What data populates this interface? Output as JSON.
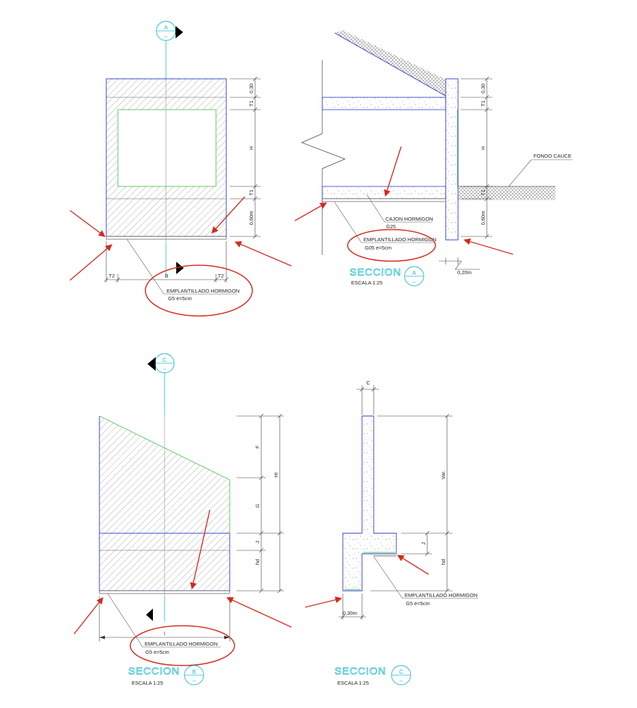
{
  "colors": {
    "structure_outline": "#2233cc",
    "inner_face": "#4cc44c",
    "centerline": "#19b8cc",
    "annotation": "#d42a1e",
    "text": "#222222"
  },
  "plan_a": {
    "section_marker": {
      "letter": "A",
      "sub": "–"
    },
    "dims": {
      "top": "0,30",
      "t1_top": "T1",
      "h": "H",
      "t1_bottom": "T1",
      "base": "0,60m"
    },
    "width_dims": {
      "left": "T2",
      "middle": "B",
      "right": "T2"
    },
    "note": {
      "line1": "EMPLANTILLADO HORMIGON",
      "line2": "G5 e=5cm"
    }
  },
  "section_a": {
    "title": "SECCION",
    "marker": {
      "letter": "A",
      "sub": "–"
    },
    "scale": "ESCALA 1:25",
    "dims": {
      "top": "0,30",
      "t1_top": "T1",
      "h": "H",
      "t1_bottom": "T1",
      "base": "0,60m"
    },
    "ground_label": "FONDO CAUCE",
    "box_note": {
      "line1": "CAJON HORMIGON",
      "line2": "G25"
    },
    "note": {
      "line1": "EMPLANTILLADO HORMIGON",
      "line2": "G05 e=5cm"
    },
    "wall_thickness": "0,20m"
  },
  "section_b": {
    "section_marker": {
      "letter": "C",
      "sub": "–"
    },
    "dims": {
      "f": "F",
      "g": "G",
      "j": "J",
      "hd": "hd",
      "ht": "Ht"
    },
    "length": "l",
    "note": {
      "line1": "EMPLANTILLADO HORMIGON",
      "line2": "G5 e=5cm"
    },
    "title": "SECCION",
    "marker": {
      "letter": "B",
      "sub": "–"
    },
    "scale": "ESCALA 1:25"
  },
  "section_c": {
    "stem_dim": "C",
    "dims": {
      "var": "Var.",
      "j": "J",
      "hd": "hd"
    },
    "note": {
      "line1": "EMPLANTILLADO HORMIGON",
      "line2": "G5 e=5cm"
    },
    "base_dim": "0,30m",
    "title": "SECCION",
    "marker": {
      "letter": "C",
      "sub": "–"
    },
    "scale": "ESCALA 1:25"
  }
}
